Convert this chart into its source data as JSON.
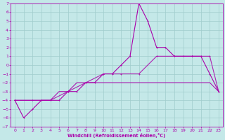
{
  "xlabel": "Windchill (Refroidissement éolien,°C)",
  "bg_color": "#c4e8e8",
  "grid_color": "#a0cccc",
  "line_color": "#aa00aa",
  "xlim": [
    -0.5,
    23.5
  ],
  "ylim": [
    -7,
    7
  ],
  "xticks": [
    0,
    1,
    2,
    3,
    4,
    5,
    6,
    7,
    8,
    9,
    10,
    11,
    12,
    13,
    14,
    15,
    16,
    17,
    18,
    19,
    20,
    21,
    22,
    23
  ],
  "yticks": [
    -7,
    -6,
    -5,
    -4,
    -3,
    -2,
    -1,
    0,
    1,
    2,
    3,
    4,
    5,
    6,
    7
  ],
  "line1_x": [
    0,
    1,
    2,
    3,
    4,
    5,
    6,
    7,
    8,
    9,
    10,
    11,
    12,
    13,
    14,
    15,
    16,
    17,
    18,
    19,
    20,
    21,
    22,
    23
  ],
  "line1_y": [
    -4,
    -6,
    -5,
    -4,
    -4,
    -4,
    -3,
    -3,
    -2,
    -2,
    -1,
    -1,
    0,
    1,
    7,
    5,
    2,
    2,
    1,
    1,
    1,
    1,
    -1,
    -3
  ],
  "line2_x": [
    0,
    1,
    2,
    3,
    4,
    5,
    6,
    7,
    8,
    9,
    10,
    11,
    12,
    13,
    14,
    15,
    16,
    17,
    18,
    19,
    20,
    21,
    22,
    23
  ],
  "line2_y": [
    -4,
    -4,
    -4,
    -4,
    -4,
    -3,
    -3,
    -2,
    -2,
    -2,
    -2,
    -2,
    -2,
    -2,
    -2,
    -2,
    -2,
    -2,
    -2,
    -2,
    -2,
    -2,
    -2,
    -3
  ],
  "line3_x": [
    0,
    2,
    4,
    6,
    8,
    10,
    12,
    14,
    16,
    18,
    20,
    22,
    23
  ],
  "line3_y": [
    -4,
    -4,
    -4,
    -3,
    -2,
    -1,
    -1,
    -1,
    1,
    1,
    1,
    1,
    -3
  ]
}
